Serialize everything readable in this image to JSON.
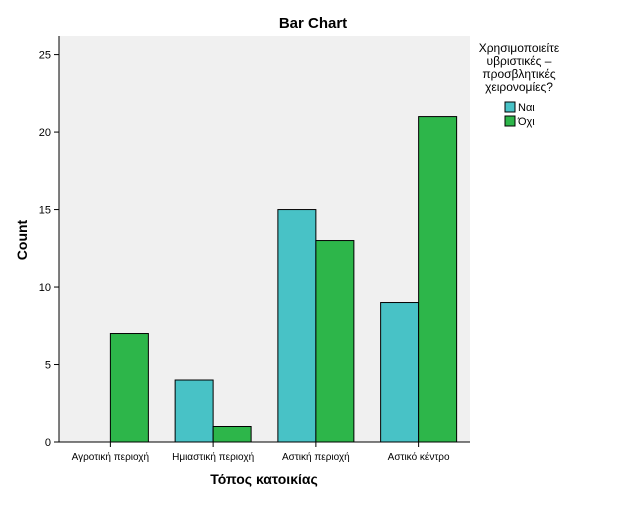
{
  "chart_data": {
    "type": "bar",
    "title": "Bar Chart",
    "xlabel": "Τόπος κατοικίας",
    "ylabel": "Count",
    "categories": [
      "Αγροτική περιοχή",
      "Ημιαστική περιοχή",
      "Αστική περιοχή",
      "Αστικό κέντρο"
    ],
    "series": [
      {
        "name": "Ναι",
        "values": [
          0,
          4,
          15,
          9
        ],
        "color": "#48c2c6"
      },
      {
        "name": "Όχι",
        "values": [
          7,
          1,
          13,
          21
        ],
        "color": "#2db64a"
      }
    ],
    "ylim": [
      0,
      26.2
    ],
    "yticks": [
      0,
      5,
      10,
      15,
      20,
      25
    ],
    "grid": false,
    "legend": {
      "title_lines": [
        "Χρησιμοποιείτε",
        "υβριστικές –",
        "προσβλητικές",
        "χειρονομίες?"
      ],
      "placement": "top-right"
    },
    "plot_background": "#f0f0f0"
  }
}
